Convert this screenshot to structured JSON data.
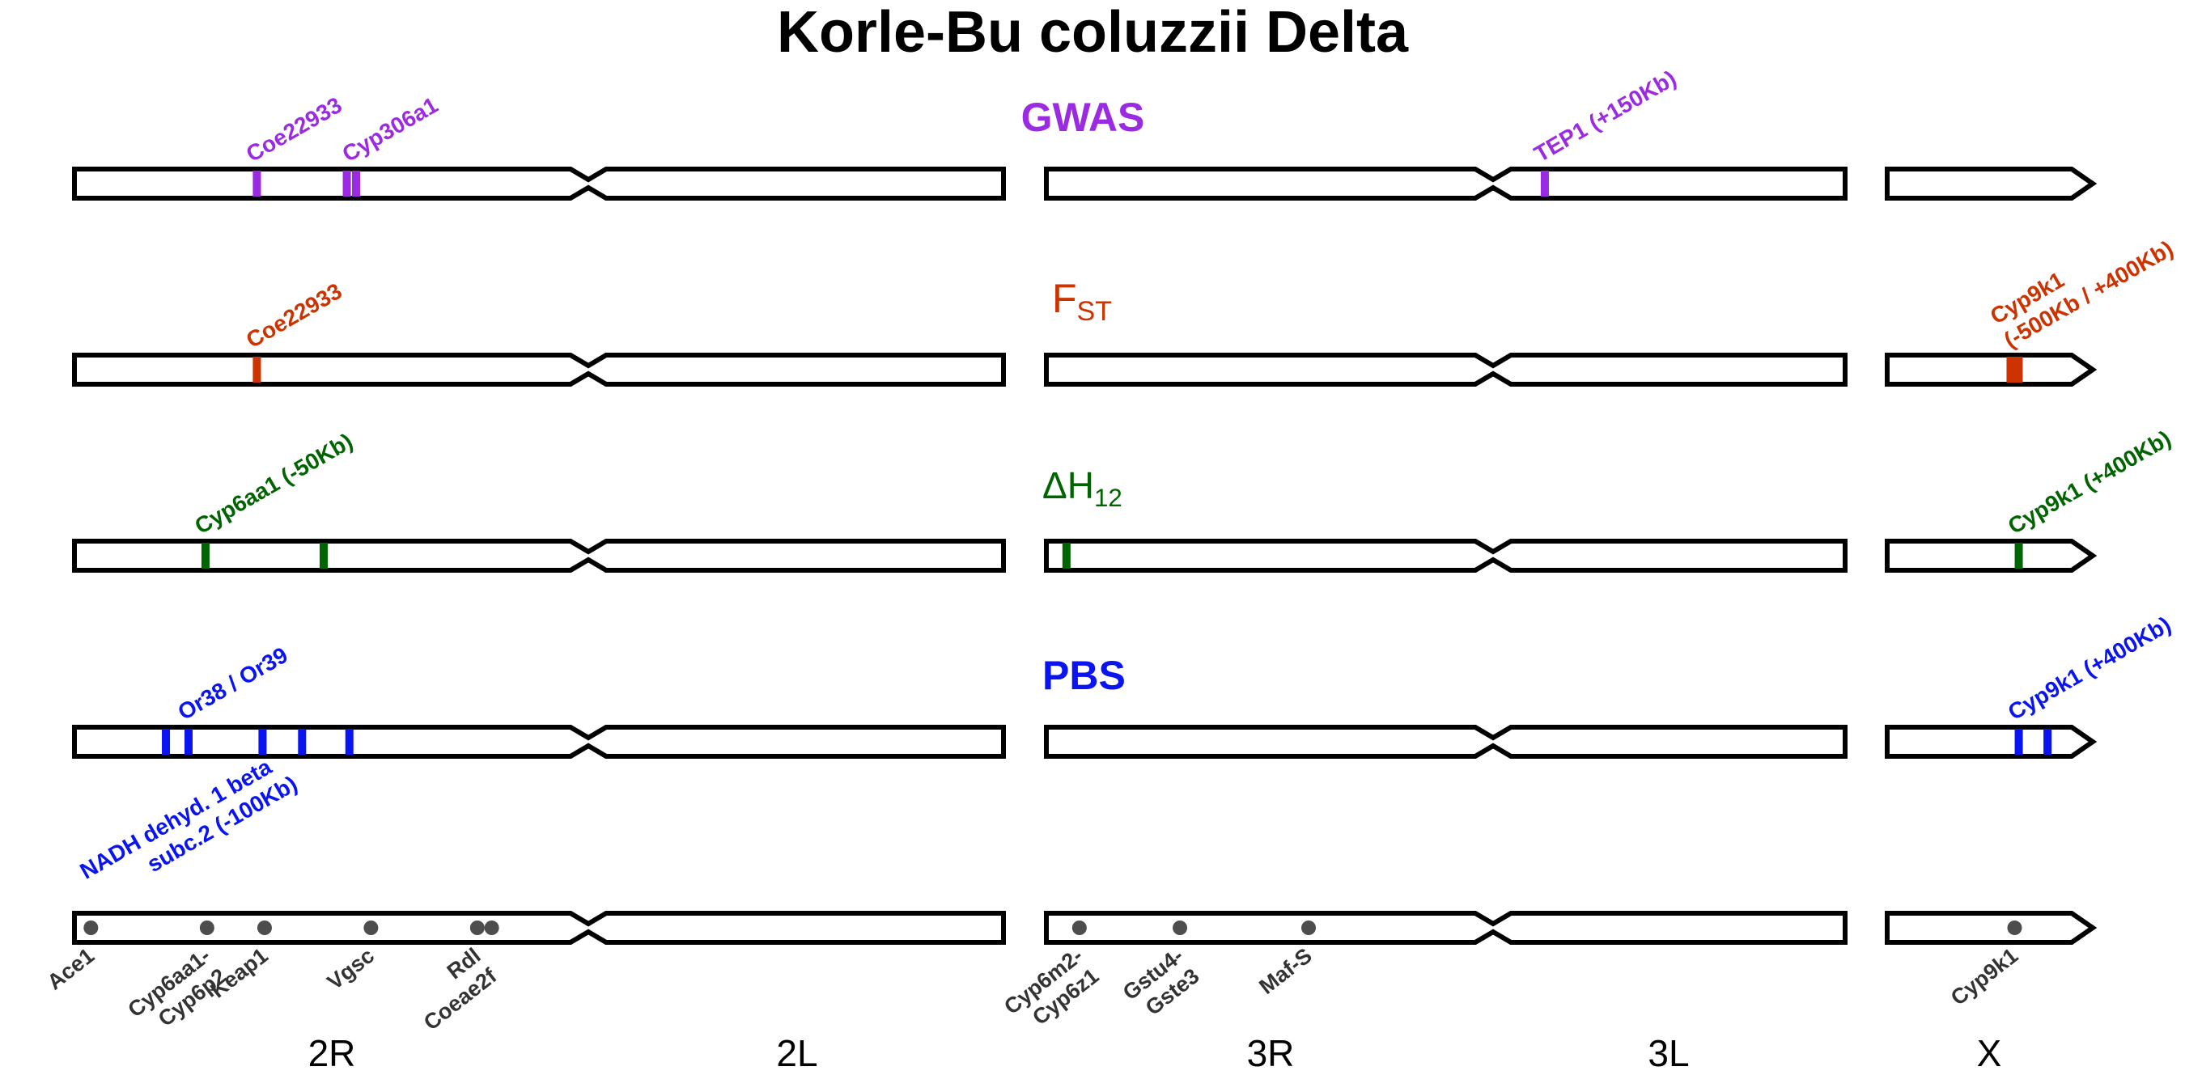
{
  "title": "Korle-Bu coluzzii Delta",
  "colors": {
    "gwas": "#9b2be2",
    "fst": "#cc3300",
    "h12": "#006400",
    "pbs": "#0a14f0",
    "gene_dot": "#4d4d4d",
    "outline": "#000000"
  },
  "panels": [
    {
      "id": "gwas",
      "label": "GWAS",
      "subscript": "",
      "color_key": "gwas",
      "peaks": [
        {
          "chrom": "2R",
          "pos": 0.355
        },
        {
          "chrom": "2R",
          "pos": 0.53
        },
        {
          "chrom": "2R",
          "pos": 0.548
        },
        {
          "chrom": "3L",
          "pos": 0.147
        }
      ],
      "annotations": [
        {
          "text": "Coe22933",
          "chrom": "2R",
          "pos": 0.355
        },
        {
          "text": "Cyp306a1",
          "chrom": "2R",
          "pos": 0.542
        },
        {
          "text": "TEP1 (+150Kb)",
          "chrom": "3L",
          "pos": 0.147
        }
      ]
    },
    {
      "id": "fst",
      "label": "F",
      "subscript": "ST",
      "color_key": "fst",
      "peaks": [
        {
          "chrom": "2R",
          "pos": 0.355
        },
        {
          "chrom": "X",
          "pos": 0.62,
          "wide": true
        }
      ],
      "annotations": [
        {
          "text": "Coe22933",
          "chrom": "2R",
          "pos": 0.355
        },
        {
          "text": "Cyp9k1",
          "text2": "(-500Kb / +400Kb)",
          "chrom": "X",
          "pos": 0.62
        }
      ]
    },
    {
      "id": "h12",
      "label": "ΔH",
      "subscript": "12",
      "color_key": "h12",
      "peaks": [
        {
          "chrom": "2R",
          "pos": 0.255
        },
        {
          "chrom": "2R",
          "pos": 0.485
        },
        {
          "chrom": "3R",
          "pos": 0.045
        },
        {
          "chrom": "X",
          "pos": 0.64
        }
      ],
      "annotations": [
        {
          "text": "Cyp6aa1 (-50Kb)",
          "chrom": "2R",
          "pos": 0.255
        },
        {
          "text": "Cyp9k1 (+400Kb)",
          "chrom": "X",
          "pos": 0.64
        }
      ]
    },
    {
      "id": "pbs",
      "label": "PBS",
      "subscript": "",
      "color_key": "pbs",
      "peaks": [
        {
          "chrom": "2R",
          "pos": 0.178
        },
        {
          "chrom": "2R",
          "pos": 0.222
        },
        {
          "chrom": "2R",
          "pos": 0.366
        },
        {
          "chrom": "2R",
          "pos": 0.443
        },
        {
          "chrom": "2R",
          "pos": 0.535
        },
        {
          "chrom": "X",
          "pos": 0.64
        },
        {
          "chrom": "X",
          "pos": 0.78
        }
      ],
      "annotations": [
        {
          "text": "Or38 / Or39",
          "chrom": "2R",
          "pos": 0.222
        },
        {
          "text": "Cyp9k1 (+400Kb)",
          "chrom": "X",
          "pos": 0.64
        }
      ]
    }
  ],
  "bottom_annotation": {
    "text": "NADH dehyd. 1 beta",
    "text2": "subc.2 (-100Kb)",
    "chrom": "2R",
    "pos": 0.03
  },
  "genes": [
    {
      "name": "Ace1",
      "name2": "",
      "chrom": "2R",
      "pos": 0.032
    },
    {
      "name": "Cyp6aa1-",
      "name2": "Cyp6p2",
      "chrom": "2R",
      "pos": 0.258
    },
    {
      "name": "Keap1",
      "name2": "",
      "chrom": "2R",
      "pos": 0.37
    },
    {
      "name": "Vgsc",
      "name2": "",
      "chrom": "2R",
      "pos": 0.577
    },
    {
      "name": "Rdl",
      "name2": "Coeae2f",
      "chrom": "2R",
      "pos": 0.784
    },
    {
      "name": "",
      "name2": "",
      "chrom": "2R",
      "pos": 0.812
    },
    {
      "name": "Cyp6m2-",
      "name2": "Cyp6z1",
      "chrom": "3R",
      "pos": 0.074
    },
    {
      "name": "Gstu4-",
      "name2": "Gste3",
      "chrom": "3R",
      "pos": 0.299
    },
    {
      "name": "Maf-S",
      "name2": "",
      "chrom": "3R",
      "pos": 0.587
    },
    {
      "name": "Cyp9k1",
      "name2": "",
      "chrom": "X",
      "pos": 0.62
    }
  ],
  "arms": [
    "2R",
    "2L",
    "3R",
    "3L",
    "X"
  ]
}
